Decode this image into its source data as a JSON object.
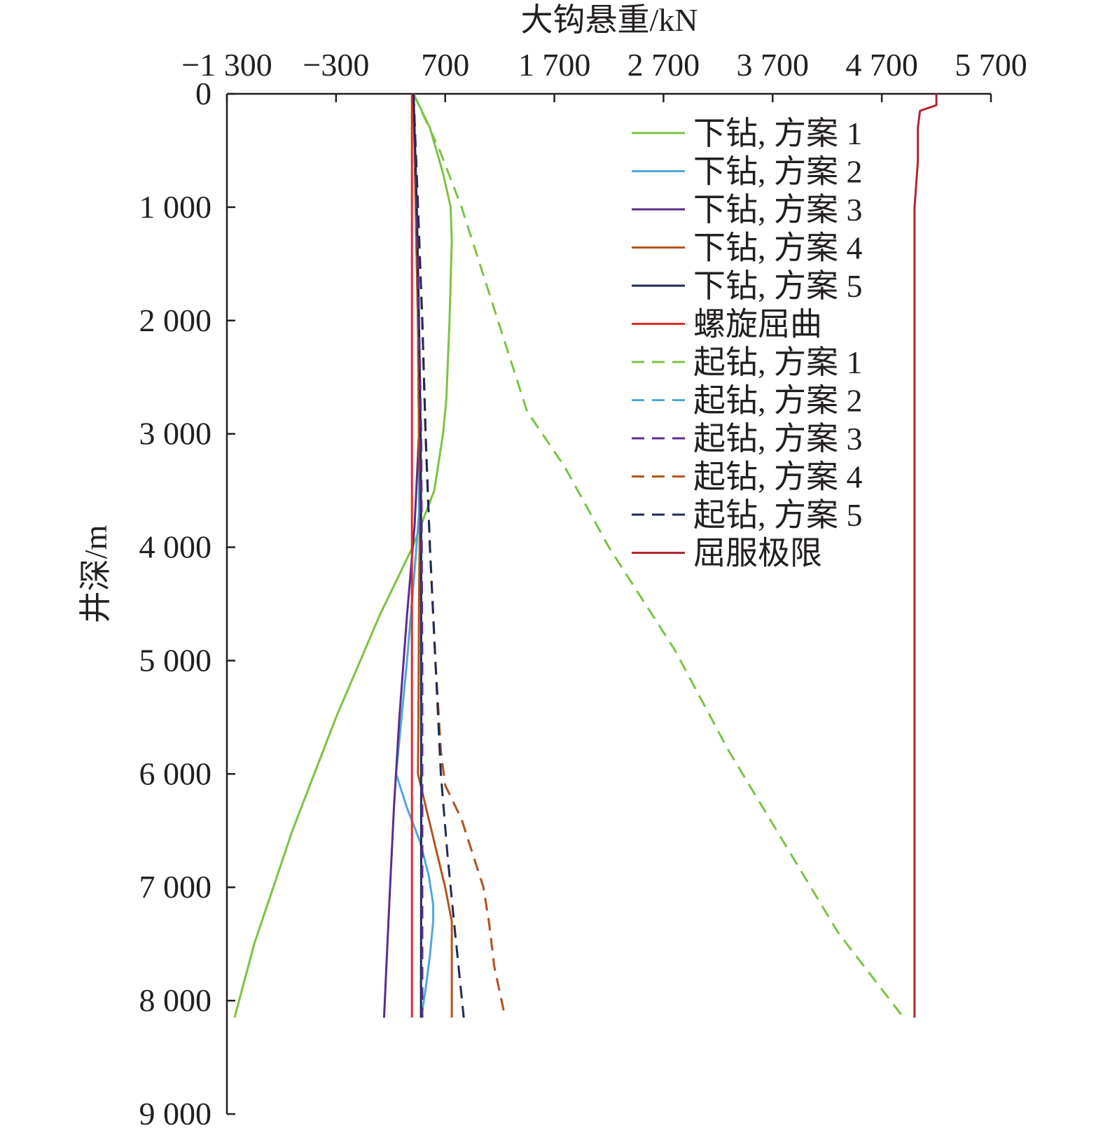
{
  "chart_data": {
    "type": "line",
    "xlabel": "大钩悬重/kN",
    "ylabel": "井深/m",
    "x_axis_position": "top",
    "y_axis_inverted": true,
    "xlim": [
      -1300,
      5700
    ],
    "ylim": [
      0,
      9000
    ],
    "x_ticks": [
      -1300,
      -300,
      700,
      1700,
      2700,
      3700,
      4700,
      5700
    ],
    "x_tick_labels": [
      "−1 300",
      "−300",
      "700",
      "1 700",
      "2 700",
      "3 700",
      "4 700",
      "5 700"
    ],
    "y_ticks": [
      0,
      1000,
      2000,
      3000,
      4000,
      5000,
      6000,
      7000,
      8000,
      9000
    ],
    "y_tick_labels": [
      "0",
      "1 000",
      "2 000",
      "3 000",
      "4 000",
      "5 000",
      "6 000",
      "7 000",
      "8 000",
      "9 000"
    ],
    "grid": false,
    "legend_position": "top-right",
    "series": [
      {
        "name": "下钻, 方案 1",
        "color": "#7dc242",
        "dash": "solid",
        "points": [
          [
            410,
            0
          ],
          [
            560,
            300
          ],
          [
            680,
            700
          ],
          [
            750,
            1000
          ],
          [
            760,
            1300
          ],
          [
            740,
            2000
          ],
          [
            710,
            2700
          ],
          [
            680,
            3000
          ],
          [
            600,
            3500
          ],
          [
            400,
            4000
          ],
          [
            100,
            4600
          ],
          [
            -300,
            5500
          ],
          [
            -700,
            6500
          ],
          [
            -1050,
            7500
          ],
          [
            -1230,
            8150
          ]
        ]
      },
      {
        "name": "下钻, 方案 2",
        "color": "#4fa8dc",
        "dash": "solid",
        "points": [
          [
            410,
            0
          ],
          [
            430,
            1000
          ],
          [
            450,
            2000
          ],
          [
            460,
            3000
          ],
          [
            460,
            3700
          ],
          [
            420,
            4200
          ],
          [
            350,
            5000
          ],
          [
            250,
            6000
          ],
          [
            350,
            6300
          ],
          [
            470,
            6600
          ],
          [
            550,
            6900
          ],
          [
            590,
            7150
          ],
          [
            590,
            7300
          ],
          [
            560,
            7600
          ],
          [
            520,
            7900
          ],
          [
            480,
            8150
          ]
        ]
      },
      {
        "name": "下钻, 方案 3",
        "color": "#5b2d8e",
        "dash": "solid",
        "points": [
          [
            410,
            0
          ],
          [
            430,
            1000
          ],
          [
            450,
            2000
          ],
          [
            460,
            3000
          ],
          [
            420,
            3800
          ],
          [
            350,
            4600
          ],
          [
            280,
            5500
          ],
          [
            230,
            6300
          ],
          [
            190,
            7100
          ],
          [
            140,
            8150
          ]
        ]
      },
      {
        "name": "下钻, 方案 4",
        "color": "#b5541c",
        "dash": "solid",
        "points": [
          [
            410,
            0
          ],
          [
            430,
            1000
          ],
          [
            450,
            2000
          ],
          [
            460,
            3000
          ],
          [
            470,
            3600
          ],
          [
            460,
            4500
          ],
          [
            455,
            5500
          ],
          [
            450,
            6000
          ],
          [
            500,
            6200
          ],
          [
            600,
            6600
          ],
          [
            700,
            7000
          ],
          [
            760,
            7300
          ],
          [
            760,
            7800
          ],
          [
            760,
            8150
          ]
        ]
      },
      {
        "name": "下钻, 方案 5",
        "color": "#1f2a55",
        "dash": "solid",
        "points": [
          [
            410,
            0
          ],
          [
            440,
            1000
          ],
          [
            460,
            2000
          ],
          [
            475,
            3000
          ],
          [
            480,
            4000
          ],
          [
            480,
            5000
          ],
          [
            480,
            6000
          ],
          [
            480,
            7000
          ],
          [
            478,
            8150
          ]
        ]
      },
      {
        "name": "螺旋屈曲",
        "color": "#e02b2b",
        "dash": "solid",
        "points": [
          [
            395,
            0
          ],
          [
            395,
            1000
          ],
          [
            395,
            2000
          ],
          [
            395,
            3000
          ],
          [
            395,
            4000
          ],
          [
            395,
            5000
          ],
          [
            395,
            6000
          ],
          [
            395,
            7000
          ],
          [
            395,
            8150
          ]
        ]
      },
      {
        "name": "起钻, 方案 1",
        "color": "#7dc242",
        "dash": "dash",
        "points": [
          [
            410,
            0
          ],
          [
            650,
            500
          ],
          [
            850,
            1000
          ],
          [
            1050,
            1600
          ],
          [
            1250,
            2200
          ],
          [
            1450,
            2800
          ],
          [
            1800,
            3300
          ],
          [
            2200,
            4000
          ],
          [
            2800,
            4900
          ],
          [
            3300,
            5800
          ],
          [
            3800,
            6600
          ],
          [
            4300,
            7400
          ],
          [
            4900,
            8150
          ]
        ]
      },
      {
        "name": "起钻, 方案 2",
        "color": "#4fa8dc",
        "dash": "dash",
        "points": [
          [
            410,
            0
          ],
          [
            450,
            1000
          ],
          [
            490,
            2000
          ],
          [
            520,
            3000
          ],
          [
            560,
            4000
          ],
          [
            610,
            5000
          ],
          [
            660,
            5800
          ],
          [
            700,
            6100
          ],
          [
            850,
            6400
          ],
          [
            950,
            6700
          ],
          [
            1050,
            7000
          ],
          [
            1100,
            7300
          ],
          [
            1150,
            7700
          ],
          [
            1250,
            8150
          ]
        ]
      },
      {
        "name": "起钻, 方案 3",
        "color": "#5b2d8e",
        "dash": "dash",
        "points": [
          [
            410,
            0
          ],
          [
            440,
            1000
          ],
          [
            460,
            2000
          ],
          [
            480,
            3000
          ],
          [
            485,
            4000
          ],
          [
            490,
            5000
          ],
          [
            490,
            6000
          ],
          [
            490,
            7000
          ],
          [
            490,
            8150
          ]
        ]
      },
      {
        "name": "起钻, 方案 4",
        "color": "#b5541c",
        "dash": "dash",
        "points": [
          [
            410,
            0
          ],
          [
            450,
            1000
          ],
          [
            490,
            2000
          ],
          [
            520,
            3000
          ],
          [
            560,
            4000
          ],
          [
            610,
            5000
          ],
          [
            660,
            5800
          ],
          [
            700,
            6100
          ],
          [
            850,
            6400
          ],
          [
            950,
            6700
          ],
          [
            1050,
            7000
          ],
          [
            1100,
            7300
          ],
          [
            1150,
            7700
          ],
          [
            1250,
            8150
          ]
        ]
      },
      {
        "name": "起钻, 方案 5",
        "color": "#1f2a55",
        "dash": "dash",
        "points": [
          [
            410,
            0
          ],
          [
            450,
            1000
          ],
          [
            490,
            2000
          ],
          [
            520,
            3000
          ],
          [
            560,
            4000
          ],
          [
            610,
            5000
          ],
          [
            660,
            6000
          ],
          [
            720,
            6700
          ],
          [
            780,
            7300
          ],
          [
            870,
            8150
          ]
        ]
      },
      {
        "name": "屈服极限",
        "color": "#b5262e",
        "dash": "solid",
        "points": [
          [
            5200,
            0
          ],
          [
            5200,
            100
          ],
          [
            5050,
            150
          ],
          [
            5030,
            300
          ],
          [
            5030,
            600
          ],
          [
            5000,
            1000
          ],
          [
            5000,
            3000
          ],
          [
            5000,
            5000
          ],
          [
            5000,
            7000
          ],
          [
            5000,
            8150
          ]
        ]
      }
    ]
  }
}
